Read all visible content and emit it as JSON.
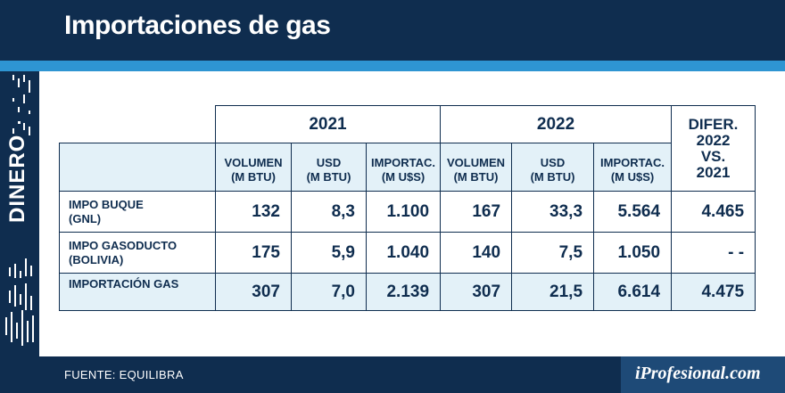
{
  "header": {
    "title": "Importaciones de gas"
  },
  "side": {
    "label": "DINERO"
  },
  "table": {
    "year_2021": "2021",
    "year_2022": "2022",
    "diff_header": [
      "DIFER.",
      "2022",
      "VS.",
      "2021"
    ],
    "sub_headers": [
      [
        "VOLUMEN",
        "(M BTU)"
      ],
      [
        "USD",
        "(M BTU)"
      ],
      [
        "IMPORTAC.",
        "(M U$S)"
      ],
      [
        "VOLUMEN",
        "(M BTU)"
      ],
      [
        "USD",
        "(M BTU)"
      ],
      [
        "IMPORTAC.",
        "(M U$S)"
      ]
    ],
    "rows": [
      {
        "label": [
          "IMPO BUQUE",
          "(GNL)"
        ],
        "values": [
          "132",
          "8,3",
          "1.100",
          "167",
          "33,3",
          "5.564",
          "4.465"
        ]
      },
      {
        "label": [
          "IMPO GASODUCTO",
          "(BOLIVIA)"
        ],
        "values": [
          "175",
          "5,9",
          "1.040",
          "140",
          "7,5",
          "1.050",
          "- -"
        ]
      },
      {
        "label": [
          "IMPORTACIÓN GAS",
          ""
        ],
        "values": [
          "307",
          "7,0",
          "2.139",
          "307",
          "21,5",
          "6.614",
          "4.475"
        ]
      }
    ]
  },
  "footer": {
    "source": "FUENTE: EQUILIBRA",
    "brand": "iProfesional.com"
  }
}
